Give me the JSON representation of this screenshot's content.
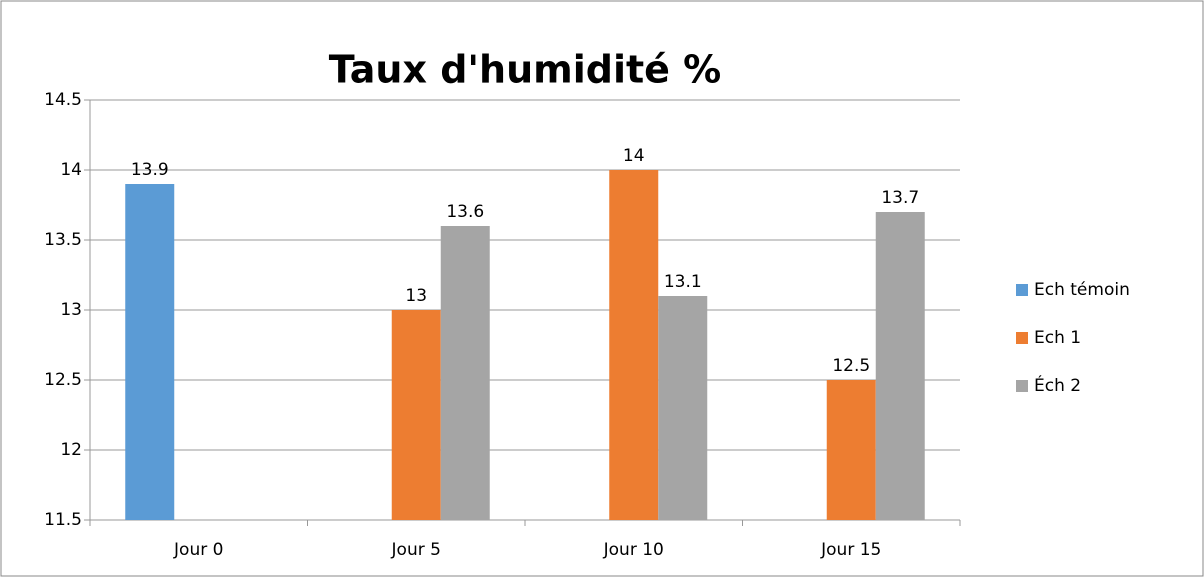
{
  "chart_data": {
    "type": "bar",
    "title": "Taux d'humidité %",
    "categories": [
      "Jour 0",
      "Jour 5",
      "Jour 10",
      "Jour 15"
    ],
    "series": [
      {
        "name": "Ech témoin",
        "color": "#5b9bd5",
        "values": [
          13.9,
          null,
          null,
          null
        ]
      },
      {
        "name": "Ech 1",
        "color": "#ed7d31",
        "values": [
          null,
          13,
          14,
          12.5
        ]
      },
      {
        "name": "Éch 2",
        "color": "#a5a5a5",
        "values": [
          null,
          13.6,
          13.1,
          13.7
        ]
      }
    ],
    "ylim": [
      11.5,
      14.5
    ],
    "yticks": [
      11.5,
      12,
      12.5,
      13,
      13.5,
      14,
      14.5
    ],
    "grid": true
  }
}
